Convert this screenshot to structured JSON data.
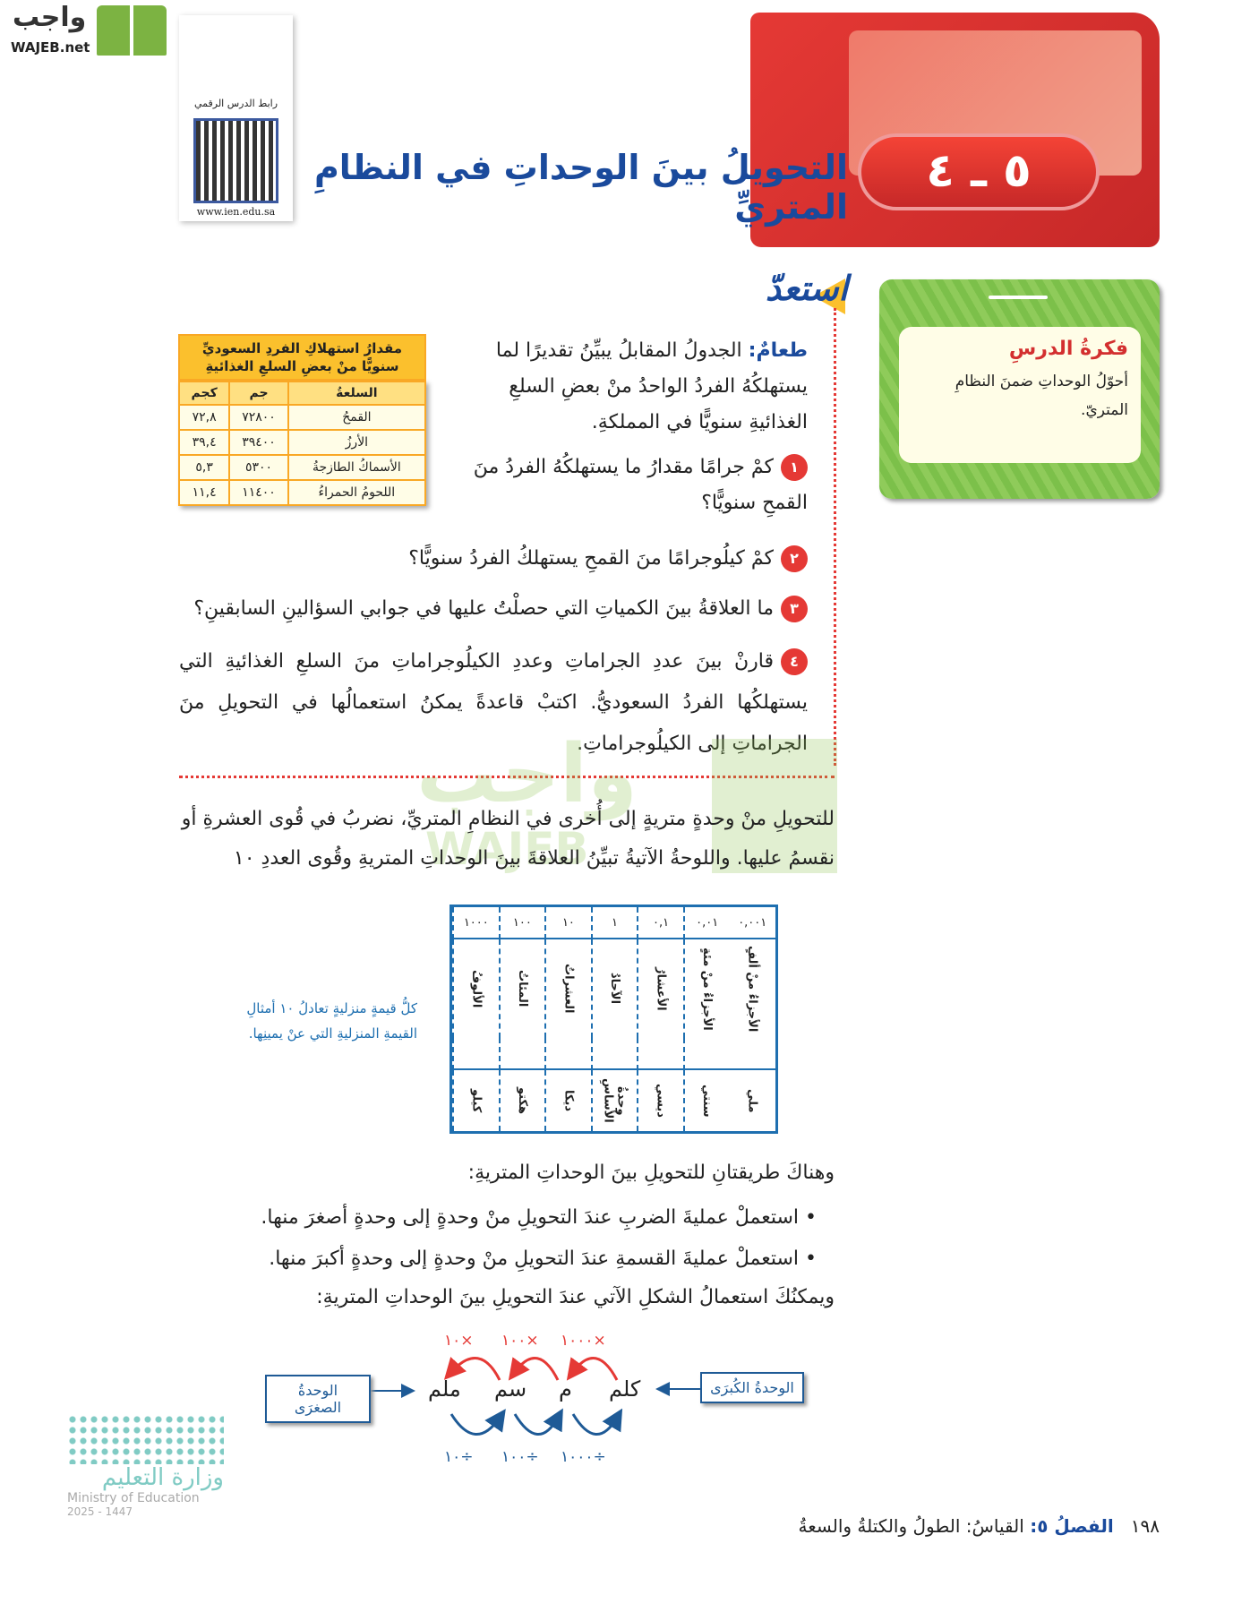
{
  "logo": {
    "arabic": "واجب",
    "english": "WAJEB.net"
  },
  "qr": {
    "label": "رابط الدرس الرقمي",
    "url": "www.ien.edu.sa"
  },
  "lesson": {
    "number": "٥ ـ ٤",
    "title": "التحويلُ بينَ الوحداتِ في النظامِ المتريِّ"
  },
  "idea": {
    "heading": "فكرةُ الدرسِ",
    "text": "أحوّلُ الوحداتِ ضمنَ النظامِ المتريّ."
  },
  "prepare": {
    "heading": "استعدّ",
    "intro_label": "طعامٌ:",
    "intro": "الجدولُ المقابلُ يبيِّنُ تقديرًا لما يستهلكُهُ الفردُ الواحدُ منْ بعضِ السلعِ الغذائيةِ سنويًّا في المملكةِ.",
    "questions": [
      {
        "n": "١",
        "text": "كمْ جرامًا مقدارُ ما يستهلكُهُ الفردُ منَ القمحِ سنويًّا؟"
      },
      {
        "n": "٢",
        "text": "كمْ كيلُوجرامًا منَ القمحِ يستهلكُ الفردُ سنويًّا؟"
      },
      {
        "n": "٣",
        "text": "ما العلاقةُ بينَ الكمياتِ التي حصلْتُ عليها في جوابي السؤالينِ السابقينِ؟"
      },
      {
        "n": "٤",
        "text": "قارنْ بينَ عددِ الجراماتِ وعددِ الكيلُوجراماتِ منَ السلعِ الغذائيةِ التي يستهلكُها الفردُ السعوديُّ. اكتبْ قاعدةً يمكنُ استعمالُها في التحويلِ منَ الجراماتِ إلى الكيلُوجراماتِ."
      }
    ]
  },
  "food_table": {
    "caption": "مقدارُ استهلاكِ الفردِ السعوديِّ سنويًّا منْ بعضِ السلعِ الغذائيةِ",
    "headers": [
      "السلعةُ",
      "جم",
      "كجم"
    ],
    "rows": [
      [
        "القمحُ",
        "٧٢٨٠٠",
        "٧٢,٨"
      ],
      [
        "الأرزُ",
        "٣٩٤٠٠",
        "٣٩,٤"
      ],
      [
        "الأسماكُ الطازجةُ",
        "٥٣٠٠",
        "٥,٣"
      ],
      [
        "اللحومُ الحمراءُ",
        "١١٤٠٠",
        "١١,٤"
      ]
    ]
  },
  "explain": "للتحويلِ منْ وحدةٍ متريةٍ إلى أُخرى في النظامِ المتريِّ، نضربُ في قُوى العشرةِ أو نقسمُ عليها. واللوحةُ الآتيةُ تبيِّنُ العلاقةَ بينَ الوحداتِ المتريةِ وقُوى العددِ ١٠",
  "place_value": {
    "values": [
      "١٠٠٠",
      "١٠٠",
      "١٠",
      "١",
      "٠,١",
      "٠,٠١",
      "٠,٠٠١"
    ],
    "names": [
      "الألوفُ",
      "المئاتُ",
      "العشراتُ",
      "الآحادُ",
      "الأعشارُ",
      "الأجزاءُ منْ مئةٍ",
      "الأجزاءُ منْ ألفٍ"
    ],
    "prefixes": [
      "كيلو",
      "هكتو",
      "ديكا",
      "وحدةُ الأساسِ",
      "ديسي",
      "سنتي",
      "ملي"
    ],
    "note": "كلُّ قيمةٍ منزليةٍ تعادلُ ١٠ أمثالِ القيمةِ المنزليةِ التي عنْ يمينِها."
  },
  "methods": {
    "intro": "وهناكَ طريقتانِ للتحويلِ بينَ الوحداتِ المتريةِ:",
    "bullets": [
      "استعملْ عمليةَ الضربِ عندَ التحويلِ منْ وحدةٍ إلى وحدةٍ أصغرَ منها.",
      "استعملْ عمليةَ القسمةِ عندَ التحويلِ منْ وحدةٍ إلى وحدةٍ أكبرَ منها."
    ],
    "outro": "ويمكنُكَ استعمالُ الشكلِ الآتي عندَ التحويلِ بينَ الوحداتِ المتريةِ:"
  },
  "diagram": {
    "larger": "الوحدةُ الكُبرَى",
    "smaller": "الوحدةُ الصغرَى",
    "units": [
      "كلم",
      "م",
      "سم",
      "ملم"
    ],
    "multiply": [
      "×١٠٠٠",
      "×١٠٠",
      "×١٠"
    ],
    "divide": [
      "÷١٠٠٠",
      "÷١٠٠",
      "÷١٠"
    ],
    "colors": {
      "multiply": "#e53935",
      "divide": "#1e5a96"
    }
  },
  "ministry": {
    "arabic": "وزارة التعليم",
    "english": "Ministry of Education",
    "year": "2025 - 1447"
  },
  "footer": {
    "page": "١٩٨",
    "chapter": "الفصلُ ٥:",
    "chapter_title": "القياسُ: الطولُ والكتلةُ والسعةُ"
  }
}
